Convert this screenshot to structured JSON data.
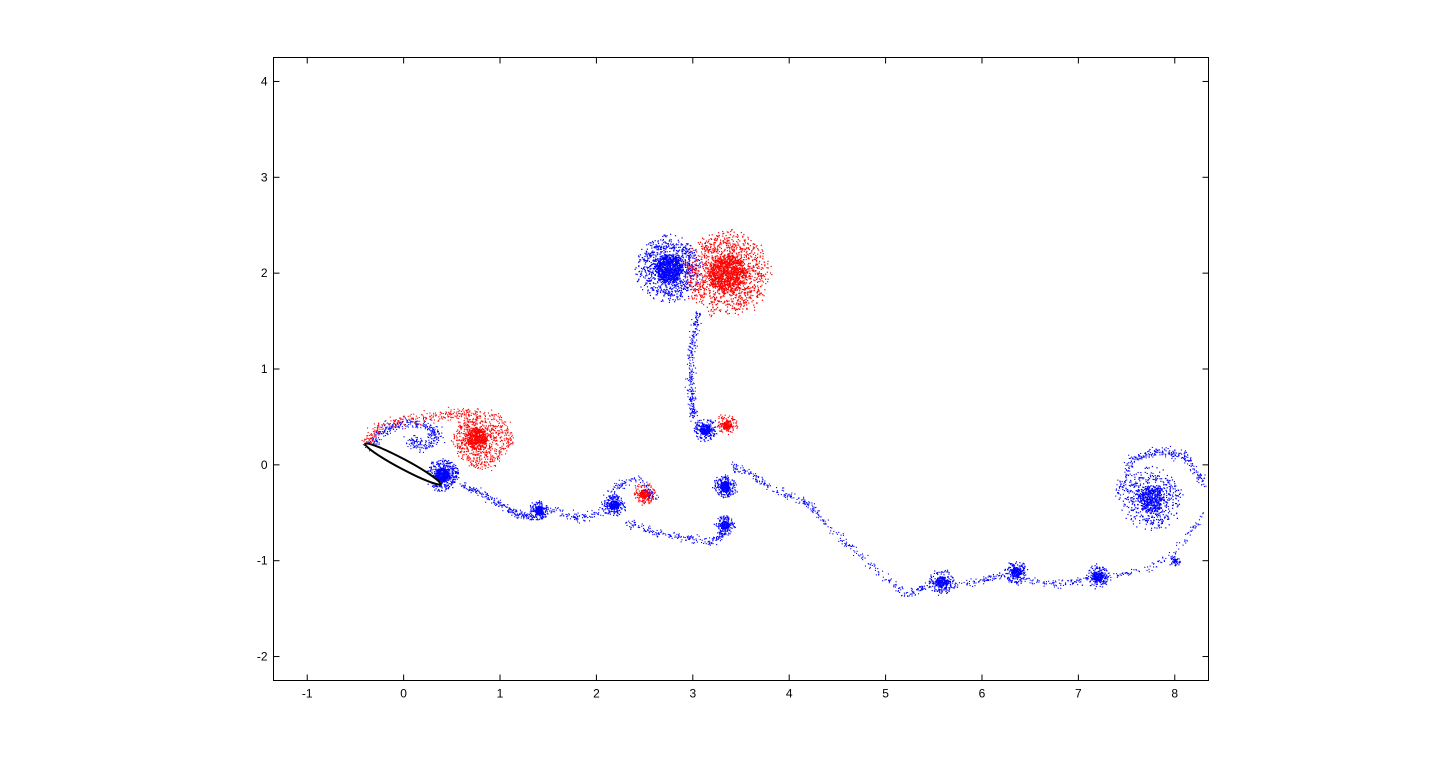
{
  "window": {
    "background": "#ffffff"
  },
  "chart_data": {
    "type": "scatter",
    "title": "",
    "xlabel": "",
    "ylabel": "",
    "xlim": [
      -1.35,
      8.35
    ],
    "ylim": [
      -2.25,
      4.25
    ],
    "x_ticks": [
      -1,
      0,
      1,
      2,
      3,
      4,
      5,
      6,
      7,
      8
    ],
    "x_tick_labels": [
      "-1",
      "0",
      "1",
      "2",
      "3",
      "4",
      "5",
      "6",
      "7",
      "8"
    ],
    "y_ticks": [
      -2,
      -1,
      0,
      1,
      2,
      3,
      4
    ],
    "y_tick_labels": [
      "-2",
      "-1",
      "0",
      "1",
      "2",
      "3",
      "4"
    ],
    "grid": false,
    "legend": false,
    "colors": {
      "negative_vorticity": "#0000ff",
      "positive_vorticity": "#ff0000",
      "airfoil_outline": "#000000",
      "airfoil_fill": "#ffffff"
    },
    "airfoil": {
      "leading_edge": [
        -0.4,
        0.22
      ],
      "trailing_edge": [
        0.38,
        -0.2
      ],
      "thickness": 0.1
    },
    "clusters": [
      {
        "kind": "disk",
        "color": "blue",
        "center": [
          0.4,
          -0.1
        ],
        "radius": 0.16,
        "count": 700
      },
      {
        "kind": "disk",
        "color": "red",
        "center": [
          0.75,
          0.28
        ],
        "radius": 0.24,
        "count": 900
      },
      {
        "kind": "disk",
        "color": "blue",
        "center": [
          1.4,
          -0.47
        ],
        "radius": 0.1,
        "count": 250
      },
      {
        "kind": "disk",
        "color": "blue",
        "center": [
          2.18,
          -0.42
        ],
        "radius": 0.11,
        "count": 280
      },
      {
        "kind": "disk",
        "color": "red",
        "center": [
          2.5,
          -0.3
        ],
        "radius": 0.11,
        "count": 220
      },
      {
        "kind": "disk",
        "color": "blue",
        "center": [
          2.75,
          2.05
        ],
        "radius": 0.32,
        "count": 1700
      },
      {
        "kind": "disk",
        "color": "red",
        "center": [
          3.35,
          2.0
        ],
        "radius": 0.42,
        "count": 2200
      },
      {
        "kind": "disk",
        "color": "blue",
        "center": [
          3.13,
          0.37
        ],
        "radius": 0.12,
        "count": 300
      },
      {
        "kind": "disk",
        "color": "red",
        "center": [
          3.35,
          0.42
        ],
        "radius": 0.11,
        "count": 200
      },
      {
        "kind": "disk",
        "color": "blue",
        "center": [
          3.33,
          -0.22
        ],
        "radius": 0.12,
        "count": 350
      },
      {
        "kind": "disk",
        "color": "blue",
        "center": [
          3.33,
          -0.63
        ],
        "radius": 0.1,
        "count": 220
      },
      {
        "kind": "disk",
        "color": "blue",
        "center": [
          5.58,
          -1.22
        ],
        "radius": 0.13,
        "count": 300
      },
      {
        "kind": "disk",
        "color": "blue",
        "center": [
          6.35,
          -1.12
        ],
        "radius": 0.12,
        "count": 260
      },
      {
        "kind": "disk",
        "color": "blue",
        "center": [
          7.2,
          -1.16
        ],
        "radius": 0.12,
        "count": 260
      },
      {
        "kind": "disk",
        "color": "blue",
        "center": [
          7.75,
          -0.35
        ],
        "radius": 0.3,
        "count": 900
      },
      {
        "kind": "disk",
        "color": "blue",
        "center": [
          8.0,
          -1.0
        ],
        "radius": 0.06,
        "count": 60
      }
    ],
    "filaments": [
      {
        "color": "blue",
        "count": 400,
        "spread": 0.03,
        "path": [
          [
            -0.35,
            0.2
          ],
          [
            -0.2,
            0.38
          ],
          [
            0.0,
            0.45
          ],
          [
            0.25,
            0.42
          ],
          [
            0.35,
            0.3
          ],
          [
            0.2,
            0.2
          ],
          [
            0.05,
            0.25
          ]
        ]
      },
      {
        "color": "red",
        "count": 500,
        "spread": 0.03,
        "path": [
          [
            -0.4,
            0.22
          ],
          [
            -0.25,
            0.4
          ],
          [
            0.0,
            0.48
          ],
          [
            0.3,
            0.5
          ],
          [
            0.6,
            0.55
          ],
          [
            0.95,
            0.52
          ],
          [
            1.1,
            0.3
          ],
          [
            0.95,
            0.05
          ],
          [
            0.7,
            0.0
          ]
        ]
      },
      {
        "color": "blue",
        "count": 220,
        "spread": 0.02,
        "path": [
          [
            0.6,
            -0.2
          ],
          [
            0.9,
            -0.35
          ],
          [
            1.15,
            -0.5
          ],
          [
            1.35,
            -0.55
          ]
        ]
      },
      {
        "color": "blue",
        "count": 220,
        "spread": 0.025,
        "path": [
          [
            1.5,
            -0.45
          ],
          [
            1.8,
            -0.55
          ],
          [
            2.05,
            -0.5
          ],
          [
            2.2,
            -0.2
          ],
          [
            2.45,
            -0.15
          ],
          [
            2.6,
            -0.35
          ]
        ]
      },
      {
        "color": "blue",
        "count": 200,
        "spread": 0.02,
        "path": [
          [
            2.3,
            -0.6
          ],
          [
            2.6,
            -0.7
          ],
          [
            2.9,
            -0.75
          ],
          [
            3.2,
            -0.8
          ],
          [
            3.35,
            -0.7
          ]
        ]
      },
      {
        "color": "blue",
        "count": 260,
        "spread": 0.02,
        "path": [
          [
            3.05,
            1.6
          ],
          [
            2.98,
            1.2
          ],
          [
            2.97,
            0.8
          ],
          [
            3.0,
            0.5
          ]
        ]
      },
      {
        "color": "blue",
        "count": 360,
        "spread": 0.02,
        "path": [
          [
            3.4,
            0.0
          ],
          [
            3.6,
            -0.1
          ],
          [
            3.9,
            -0.28
          ],
          [
            4.2,
            -0.4
          ],
          [
            4.45,
            -0.7
          ],
          [
            4.8,
            -1.0
          ],
          [
            5.2,
            -1.35
          ],
          [
            5.45,
            -1.25
          ]
        ]
      },
      {
        "color": "blue",
        "count": 320,
        "spread": 0.02,
        "path": [
          [
            5.7,
            -1.25
          ],
          [
            6.0,
            -1.2
          ],
          [
            6.2,
            -1.15
          ],
          [
            6.5,
            -1.2
          ],
          [
            6.8,
            -1.25
          ],
          [
            7.05,
            -1.2
          ],
          [
            7.35,
            -1.15
          ],
          [
            7.7,
            -1.1
          ],
          [
            8.0,
            -0.9
          ],
          [
            8.3,
            -0.5
          ]
        ]
      },
      {
        "color": "blue",
        "count": 300,
        "spread": 0.025,
        "path": [
          [
            7.4,
            -0.3
          ],
          [
            7.55,
            0.05
          ],
          [
            7.8,
            0.15
          ],
          [
            8.1,
            0.1
          ],
          [
            8.3,
            -0.2
          ]
        ]
      }
    ]
  }
}
